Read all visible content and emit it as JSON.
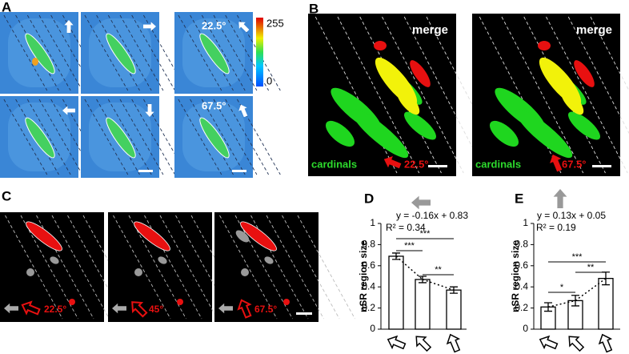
{
  "panels": {
    "a": {
      "label": "A",
      "angles": [
        "22.5°",
        "67.5°"
      ],
      "colorbar": {
        "max": "255",
        "min": "0"
      }
    },
    "b": {
      "label": "B",
      "images": [
        {
          "title": "merge",
          "legend": "cardinals",
          "angle": "22.5°"
        },
        {
          "title": "merge",
          "legend": "cardinals",
          "angle": "67.5°"
        }
      ]
    },
    "c": {
      "label": "C",
      "angles": [
        "22.5°",
        "45°",
        "67.5°"
      ]
    },
    "d": {
      "label": "D"
    },
    "e": {
      "label": "E"
    }
  },
  "chart_data": [
    {
      "type": "bar",
      "y_label": "nSR region size",
      "equation": "y = -0.16x + 0.83",
      "r_squared": "R² = 0.34",
      "categories": [
        null,
        null,
        null
      ],
      "values": [
        0.69,
        0.47,
        0.37
      ],
      "errors": [
        0.03,
        0.03,
        0.03
      ],
      "ylim": [
        0,
        1
      ],
      "yticks": [
        0,
        0.2,
        0.4,
        0.6,
        0.8,
        1
      ],
      "color": "#ffffff",
      "significance": [
        "***",
        "***",
        "**"
      ]
    },
    {
      "type": "bar",
      "y_label": "nSR region size",
      "equation": "y = 0.13x + 0.05",
      "r_squared": "R² = 0.19",
      "categories": [
        null,
        null,
        null
      ],
      "values": [
        0.21,
        0.27,
        0.48
      ],
      "errors": [
        0.04,
        0.05,
        0.06
      ],
      "ylim": [
        0,
        1
      ],
      "yticks": [
        0,
        0.2,
        0.4,
        0.6,
        0.8,
        1
      ],
      "color": "#ffffff",
      "significance": [
        "***",
        "**",
        "*"
      ]
    }
  ]
}
